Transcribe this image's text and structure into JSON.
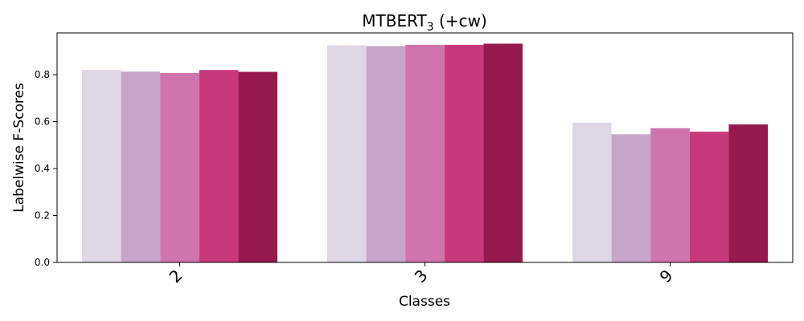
{
  "chart_data": {
    "type": "bar",
    "title_main": "MTBERT",
    "title_sub": "3",
    "title_suffix": " (+cw)",
    "xlabel": "Classes",
    "ylabel": "Labelwise F-Scores",
    "categories": [
      "2",
      "3",
      "9"
    ],
    "ylim": [
      0,
      0.978
    ],
    "yticks": [
      0.0,
      0.2,
      0.4,
      0.6,
      0.8
    ],
    "ytick_labels": [
      "0.0",
      "0.2",
      "0.4",
      "0.6",
      "0.8"
    ],
    "grid": false,
    "legend": "none",
    "colors": [
      "#dfd6e6",
      "#c7a5c8",
      "#d074ae",
      "#c8397b",
      "#961a4e"
    ],
    "series": [
      {
        "values": [
          0.82,
          0.925,
          0.595
        ]
      },
      {
        "values": [
          0.813,
          0.922,
          0.546
        ]
      },
      {
        "values": [
          0.807,
          0.927,
          0.572
        ]
      },
      {
        "values": [
          0.82,
          0.927,
          0.557
        ]
      },
      {
        "values": [
          0.812,
          0.932,
          0.588
        ]
      }
    ]
  }
}
